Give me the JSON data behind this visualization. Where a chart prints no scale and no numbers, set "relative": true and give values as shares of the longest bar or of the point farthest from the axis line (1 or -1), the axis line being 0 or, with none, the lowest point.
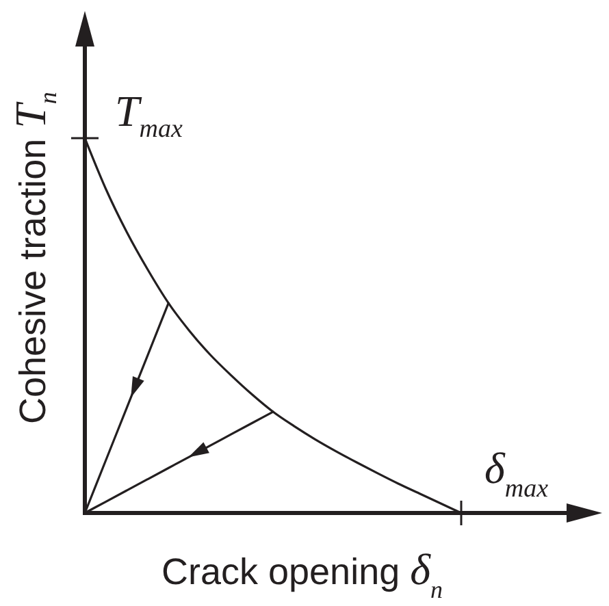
{
  "chart_data": {
    "type": "line",
    "relative": true,
    "xlabel": "Crack opening δ$_{n}$",
    "ylabel": "Cohesive traction T$_{n}$",
    "categories": [
      null,
      null,
      null,
      null,
      null,
      null,
      null,
      null,
      null,
      null,
      null,
      null,
      null,
      null,
      null,
      null,
      null,
      null,
      null
    ],
    "line_style": "solid",
    "series": [
      {
        "color": "#231f20",
        "values": [
          1,
          0.865,
          0.75,
          0.65,
          0.56,
          0.486,
          0.422,
          0.367,
          0.316,
          0.27,
          0.232,
          0.197,
          0.165,
          0.135,
          0.106,
          0.078,
          0.052,
          0.026,
          0
        ]
      },
      {
        "color": "#231f20",
        "values": [
          0,
          0.14,
          0.28,
          0.42,
          0.56,
          null,
          null,
          null,
          null,
          null,
          null,
          null,
          null,
          null,
          null,
          null,
          null,
          null,
          null
        ]
      },
      {
        "color": "#231f20",
        "values": [
          0,
          0.03,
          0.06,
          0.09,
          0.12,
          0.15,
          0.18,
          0.21,
          0.24,
          0.27,
          null,
          null,
          null,
          null,
          null,
          null,
          null,
          null,
          null
        ]
      }
    ],
    "annotations": [
      "T$_{max}$",
      "δ$_{max}$"
    ]
  }
}
